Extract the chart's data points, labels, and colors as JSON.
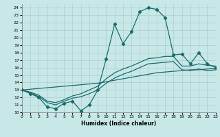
{
  "xlabel": "Humidex (Indice chaleur)",
  "bg_color": "#c8e8e8",
  "grid_color": "#b0d0d0",
  "line_color": "#1a6b6b",
  "x_values": [
    0,
    1,
    2,
    3,
    4,
    5,
    6,
    7,
    8,
    9,
    10,
    11,
    12,
    13,
    14,
    15,
    16,
    17,
    18,
    19,
    20,
    21,
    22,
    23
  ],
  "main_line": [
    13.0,
    12.5,
    12.0,
    10.7,
    10.5,
    11.2,
    11.5,
    10.2,
    11.0,
    13.0,
    17.2,
    21.8,
    19.2,
    20.8,
    23.5,
    24.0,
    23.8,
    22.7,
    17.7,
    17.8,
    16.5,
    18.0,
    16.5,
    16.0
  ],
  "line2": [
    13.0,
    12.7,
    12.3,
    11.5,
    11.3,
    11.7,
    12.2,
    12.5,
    13.0,
    13.5,
    14.5,
    15.3,
    15.8,
    16.2,
    16.7,
    17.2,
    17.3,
    17.5,
    17.5,
    16.2,
    16.2,
    16.5,
    16.3,
    16.2
  ],
  "line3": [
    13.0,
    12.6,
    12.1,
    11.3,
    11.0,
    11.5,
    11.9,
    12.1,
    12.5,
    13.0,
    13.9,
    14.6,
    15.1,
    15.5,
    16.0,
    16.5,
    16.6,
    16.7,
    16.8,
    15.7,
    15.6,
    15.8,
    15.6,
    15.7
  ],
  "trend_line": [
    13.0,
    13.1,
    13.2,
    13.3,
    13.4,
    13.5,
    13.6,
    13.7,
    13.8,
    13.9,
    14.1,
    14.3,
    14.5,
    14.7,
    14.9,
    15.1,
    15.3,
    15.4,
    15.5,
    15.6,
    15.7,
    15.7,
    15.8,
    15.9
  ],
  "xlim": [
    0,
    23
  ],
  "ylim": [
    10,
    24.5
  ],
  "yticks": [
    10,
    11,
    12,
    13,
    14,
    15,
    16,
    17,
    18,
    19,
    20,
    21,
    22,
    23,
    24
  ],
  "xticks": [
    0,
    1,
    2,
    3,
    4,
    5,
    6,
    7,
    8,
    9,
    10,
    11,
    12,
    13,
    14,
    15,
    16,
    17,
    18,
    19,
    20,
    21,
    22,
    23
  ]
}
